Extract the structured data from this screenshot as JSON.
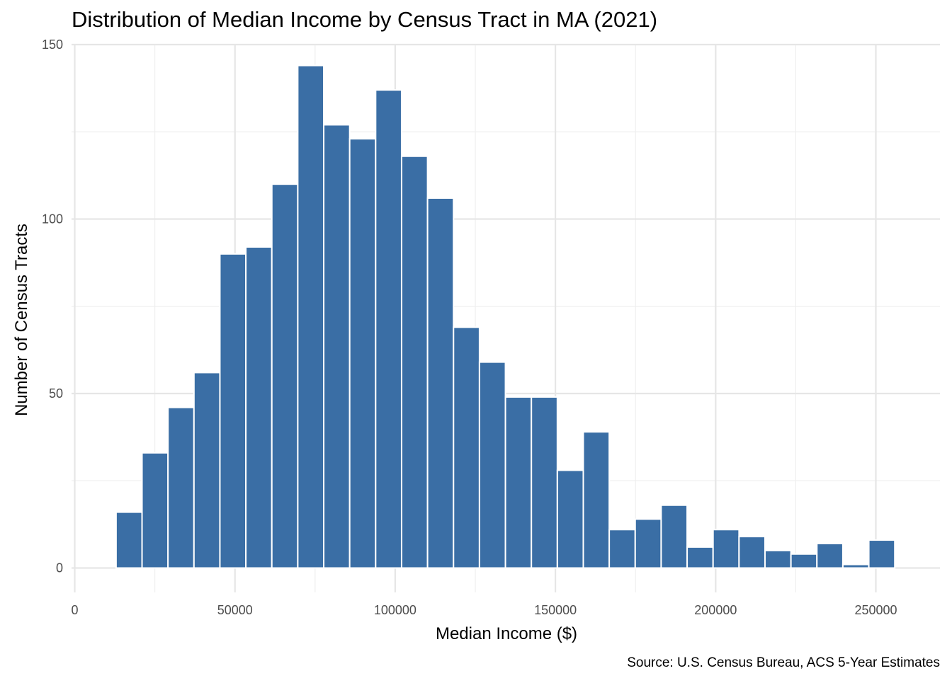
{
  "chart_data": {
    "type": "bar",
    "title": "Distribution of Median Income by Census Tract in MA (2021)",
    "xlabel": "Median Income ($)",
    "ylabel": "Number of Census Tracts",
    "caption": "Source: U.S. Census Bureau, ACS 5-Year Estimates",
    "xlim": [
      -1000,
      270000
    ],
    "ylim": [
      -7,
      150
    ],
    "x_ticks": [
      0,
      50000,
      100000,
      150000,
      200000,
      250000
    ],
    "x_tick_labels": [
      "0",
      "50000",
      "100000",
      "150000",
      "200000",
      "250000"
    ],
    "y_ticks": [
      0,
      50,
      100,
      150
    ],
    "y_tick_labels": [
      "0",
      "50",
      "100",
      "150"
    ],
    "bin_width": 8100,
    "bins": [
      {
        "x0": 12900,
        "x1": 21000,
        "count": 16
      },
      {
        "x0": 21000,
        "x1": 29100,
        "count": 33
      },
      {
        "x0": 29100,
        "x1": 37200,
        "count": 46
      },
      {
        "x0": 37200,
        "x1": 45300,
        "count": 56
      },
      {
        "x0": 45300,
        "x1": 53400,
        "count": 90
      },
      {
        "x0": 53400,
        "x1": 61500,
        "count": 92
      },
      {
        "x0": 61500,
        "x1": 69600,
        "count": 110
      },
      {
        "x0": 69600,
        "x1": 77700,
        "count": 144
      },
      {
        "x0": 77700,
        "x1": 85800,
        "count": 127
      },
      {
        "x0": 85800,
        "x1": 93900,
        "count": 123
      },
      {
        "x0": 93900,
        "x1": 102000,
        "count": 137
      },
      {
        "x0": 102000,
        "x1": 110100,
        "count": 118
      },
      {
        "x0": 110100,
        "x1": 118200,
        "count": 106
      },
      {
        "x0": 118200,
        "x1": 126300,
        "count": 69
      },
      {
        "x0": 126300,
        "x1": 134400,
        "count": 59
      },
      {
        "x0": 134400,
        "x1": 142500,
        "count": 49
      },
      {
        "x0": 142500,
        "x1": 150600,
        "count": 49
      },
      {
        "x0": 150600,
        "x1": 158700,
        "count": 28
      },
      {
        "x0": 158700,
        "x1": 166800,
        "count": 39
      },
      {
        "x0": 166800,
        "x1": 174900,
        "count": 11
      },
      {
        "x0": 174900,
        "x1": 183000,
        "count": 14
      },
      {
        "x0": 183000,
        "x1": 191100,
        "count": 18
      },
      {
        "x0": 191100,
        "x1": 199200,
        "count": 6
      },
      {
        "x0": 199200,
        "x1": 207300,
        "count": 11
      },
      {
        "x0": 207300,
        "x1": 215400,
        "count": 9
      },
      {
        "x0": 215400,
        "x1": 223500,
        "count": 5
      },
      {
        "x0": 223500,
        "x1": 231600,
        "count": 4
      },
      {
        "x0": 231600,
        "x1": 239700,
        "count": 7
      },
      {
        "x0": 239700,
        "x1": 247800,
        "count": 1
      },
      {
        "x0": 247800,
        "x1": 255900,
        "count": 8
      }
    ],
    "grid": true,
    "colors": {
      "bar_fill": "#3a6ea5",
      "bar_outline": "#ffffff",
      "grid_major": "#e6e6e6",
      "grid_minor": "#efefef",
      "tick_text": "#4d4d4d",
      "text": "#000000"
    }
  }
}
